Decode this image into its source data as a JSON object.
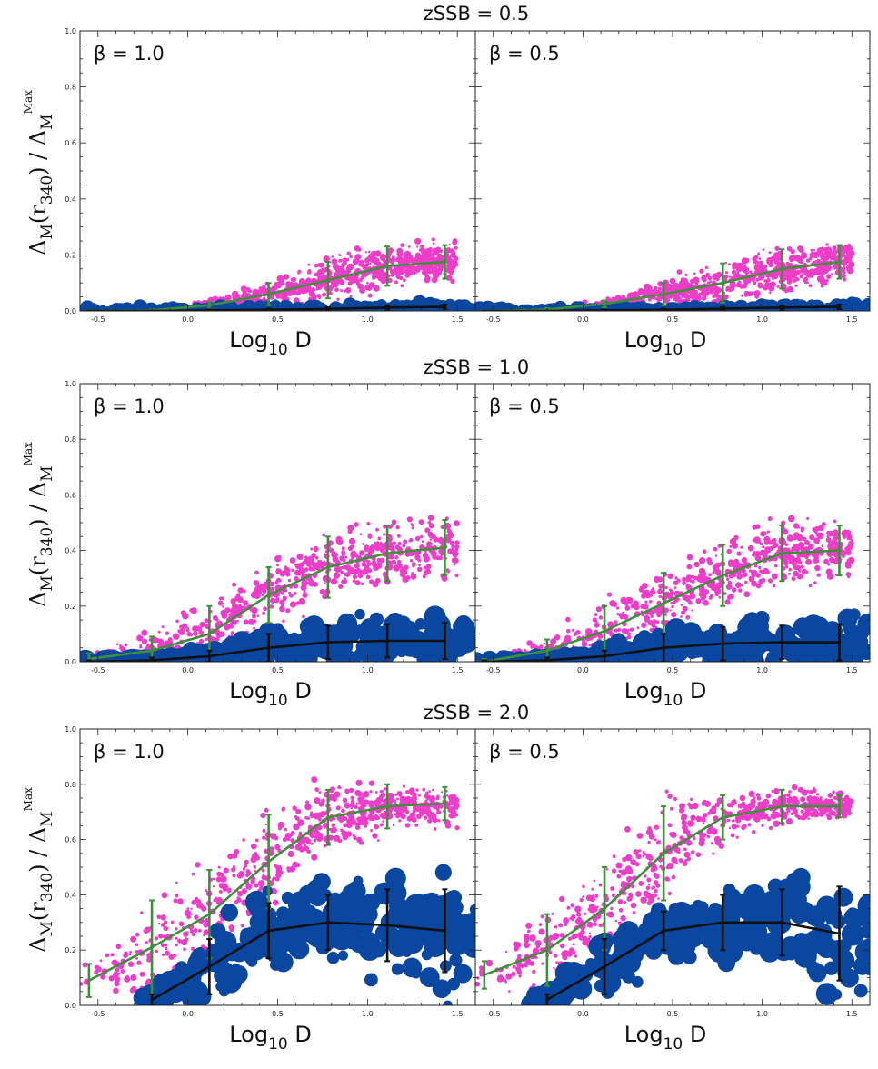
{
  "colors": {
    "magenta": "#ee3dc8",
    "blue": "#0a47a0",
    "green": "#3f8f3a",
    "black": "#111111",
    "frame": "#222222"
  },
  "icons": {
    "magenta_points": "magenta-scatter-marker",
    "blue_points": "blue-scatter-marker"
  },
  "chart_data": [
    {
      "type": "scatter",
      "row": 0,
      "panel": "left",
      "title": "zSSB = 0.5",
      "annotation": "β = 1.0",
      "xlabel": "Log10 D",
      "ylabel": "ΔM(r340) / ΔM Max",
      "xlim": [
        -0.6,
        1.6
      ],
      "ylim": [
        0,
        1.0
      ],
      "xticks": [
        "-0.5",
        "0.0",
        "0.5",
        "1.0",
        "1.5"
      ],
      "yticks": [
        "0.0",
        "0.2",
        "0.4",
        "0.6",
        "0.8",
        "1.0"
      ],
      "series": [
        {
          "name": "magenta scatter",
          "color": "magenta",
          "kind": "scatter",
          "x_range": [
            0.0,
            1.5
          ],
          "mean_curve": "green"
        },
        {
          "name": "blue scatter",
          "color": "blue",
          "kind": "scatter",
          "x_range": [
            -0.6,
            1.6
          ],
          "mean_curve": "black"
        },
        {
          "name": "green mean",
          "color": "green",
          "kind": "line_errorbar",
          "x": [
            -0.55,
            -0.2,
            0.12,
            0.45,
            0.78,
            1.11,
            1.43
          ],
          "y": [
            0.0,
            0.002,
            0.02,
            0.06,
            0.11,
            0.16,
            0.175
          ],
          "err": [
            0.003,
            0.004,
            0.012,
            0.04,
            0.065,
            0.07,
            0.06
          ]
        },
        {
          "name": "black mean",
          "color": "black",
          "kind": "line_errorbar",
          "x": [
            -0.55,
            -0.2,
            0.12,
            0.45,
            0.78,
            1.11,
            1.43
          ],
          "y": [
            0.0,
            0.0,
            0.002,
            0.004,
            0.007,
            0.012,
            0.015
          ],
          "err": [
            0.001,
            0.001,
            0.003,
            0.004,
            0.006,
            0.007,
            0.008
          ]
        }
      ]
    },
    {
      "type": "scatter",
      "row": 0,
      "panel": "right",
      "annotation": "β = 0.5",
      "xlabel": "Log10 D",
      "xlim": [
        -0.6,
        1.6
      ],
      "ylim": [
        0,
        1.0
      ],
      "xticks": [
        "-0.5",
        "0.0",
        "0.5",
        "1.0",
        "1.5"
      ],
      "series": [
        {
          "name": "magenta scatter",
          "color": "magenta",
          "kind": "scatter",
          "x_range": [
            0.0,
            1.5
          ],
          "mean_curve": "green"
        },
        {
          "name": "blue scatter",
          "color": "blue",
          "kind": "scatter",
          "x_range": [
            -0.6,
            1.6
          ],
          "mean_curve": "black"
        },
        {
          "name": "green mean",
          "color": "green",
          "kind": "line_errorbar",
          "x": [
            -0.55,
            -0.2,
            0.12,
            0.45,
            0.78,
            1.11,
            1.43
          ],
          "y": [
            0.0,
            0.005,
            0.025,
            0.06,
            0.1,
            0.15,
            0.175
          ],
          "err": [
            0.003,
            0.005,
            0.012,
            0.04,
            0.07,
            0.07,
            0.06
          ]
        },
        {
          "name": "black mean",
          "color": "black",
          "kind": "line_errorbar",
          "x": [
            -0.55,
            -0.2,
            0.12,
            0.45,
            0.78,
            1.11,
            1.43
          ],
          "y": [
            0.0,
            0.0,
            0.002,
            0.004,
            0.008,
            0.012,
            0.015
          ],
          "err": [
            0.001,
            0.001,
            0.003,
            0.004,
            0.006,
            0.007,
            0.008
          ]
        }
      ]
    },
    {
      "type": "scatter",
      "row": 1,
      "panel": "left",
      "title": "zSSB = 1.0",
      "annotation": "β = 1.0",
      "xlabel": "Log10 D",
      "ylabel": "ΔM(r340) / ΔM Max",
      "xlim": [
        -0.6,
        1.6
      ],
      "ylim": [
        0,
        1.0
      ],
      "xticks": [
        "-0.5",
        "0.0",
        "0.5",
        "1.0",
        "1.5"
      ],
      "yticks": [
        "0.0",
        "0.2",
        "0.4",
        "0.6",
        "0.8",
        "1.0"
      ],
      "series": [
        {
          "name": "magenta scatter",
          "color": "magenta",
          "kind": "scatter",
          "x_range": [
            -0.6,
            1.5
          ],
          "mean_curve": "green"
        },
        {
          "name": "blue scatter",
          "color": "blue",
          "kind": "scatter",
          "x_range": [
            -0.6,
            1.6
          ],
          "mean_curve": "black"
        },
        {
          "name": "green mean",
          "color": "green",
          "kind": "line_errorbar",
          "x": [
            -0.55,
            -0.2,
            0.12,
            0.45,
            0.78,
            1.11,
            1.43
          ],
          "y": [
            0.01,
            0.04,
            0.1,
            0.24,
            0.34,
            0.39,
            0.41
          ],
          "err": [
            0.02,
            0.05,
            0.1,
            0.1,
            0.11,
            0.1,
            0.1
          ]
        },
        {
          "name": "black mean",
          "color": "black",
          "kind": "line_errorbar",
          "x": [
            -0.55,
            -0.2,
            0.12,
            0.45,
            0.78,
            1.11,
            1.43
          ],
          "y": [
            0.0,
            0.005,
            0.02,
            0.05,
            0.07,
            0.075,
            0.075
          ],
          "err": [
            0.005,
            0.01,
            0.02,
            0.05,
            0.06,
            0.06,
            0.065
          ]
        }
      ]
    },
    {
      "type": "scatter",
      "row": 1,
      "panel": "right",
      "annotation": "β = 0.5",
      "xlabel": "Log10 D",
      "xlim": [
        -0.6,
        1.6
      ],
      "ylim": [
        0,
        1.0
      ],
      "xticks": [
        "-0.5",
        "0.0",
        "0.5",
        "1.0",
        "1.5"
      ],
      "series": [
        {
          "name": "magenta scatter",
          "color": "magenta",
          "kind": "scatter",
          "x_range": [
            -0.6,
            1.5
          ],
          "mean_curve": "green"
        },
        {
          "name": "blue scatter",
          "color": "blue",
          "kind": "scatter",
          "x_range": [
            -0.6,
            1.6
          ],
          "mean_curve": "black"
        },
        {
          "name": "green mean",
          "color": "green",
          "kind": "line_errorbar",
          "x": [
            -0.55,
            -0.2,
            0.12,
            0.45,
            0.78,
            1.11,
            1.43
          ],
          "y": [
            0.0,
            0.04,
            0.11,
            0.21,
            0.31,
            0.39,
            0.4
          ],
          "err": [
            0.01,
            0.04,
            0.09,
            0.11,
            0.11,
            0.1,
            0.09
          ]
        },
        {
          "name": "black mean",
          "color": "black",
          "kind": "line_errorbar",
          "x": [
            -0.55,
            -0.2,
            0.12,
            0.45,
            0.78,
            1.11,
            1.43
          ],
          "y": [
            0.0,
            0.005,
            0.02,
            0.05,
            0.065,
            0.07,
            0.07
          ],
          "err": [
            0.005,
            0.01,
            0.02,
            0.05,
            0.06,
            0.06,
            0.065
          ]
        }
      ]
    },
    {
      "type": "scatter",
      "row": 2,
      "panel": "left",
      "title": "zSSB = 2.0",
      "annotation": "β = 1.0",
      "xlabel": "Log10 D",
      "ylabel": "ΔM(r340) / ΔM Max",
      "xlim": [
        -0.6,
        1.6
      ],
      "ylim": [
        0,
        1.0
      ],
      "xticks": [
        "-0.5",
        "0.0",
        "0.5",
        "1.0",
        "1.5"
      ],
      "yticks": [
        "0.0",
        "0.2",
        "0.4",
        "0.6",
        "0.8",
        "1.0"
      ],
      "series": [
        {
          "name": "magenta scatter",
          "color": "magenta",
          "kind": "scatter",
          "x_range": [
            -0.6,
            1.5
          ],
          "mean_curve": "green"
        },
        {
          "name": "blue scatter",
          "color": "blue",
          "kind": "scatter",
          "x_range": [
            -0.3,
            1.6
          ],
          "mean_curve": "black"
        },
        {
          "name": "green mean",
          "color": "green",
          "kind": "line_errorbar",
          "x": [
            -0.55,
            -0.2,
            0.12,
            0.45,
            0.78,
            1.11,
            1.43
          ],
          "y": [
            0.09,
            0.21,
            0.33,
            0.52,
            0.68,
            0.72,
            0.73
          ],
          "err": [
            0.06,
            0.17,
            0.16,
            0.17,
            0.1,
            0.08,
            0.06
          ]
        },
        {
          "name": "black mean",
          "color": "black",
          "kind": "line_errorbar",
          "x": [
            -0.2,
            0.12,
            0.45,
            0.78,
            1.11,
            1.43
          ],
          "y": [
            0.02,
            0.14,
            0.27,
            0.3,
            0.29,
            0.27
          ],
          "err": [
            0.02,
            0.1,
            0.1,
            0.1,
            0.13,
            0.15
          ]
        }
      ]
    },
    {
      "type": "scatter",
      "row": 2,
      "panel": "right",
      "annotation": "β = 0.5",
      "xlabel": "Log10 D",
      "xlim": [
        -0.6,
        1.6
      ],
      "ylim": [
        0,
        1.0
      ],
      "xticks": [
        "-0.5",
        "0.0",
        "0.5",
        "1.0",
        "1.5"
      ],
      "series": [
        {
          "name": "magenta scatter",
          "color": "magenta",
          "kind": "scatter",
          "x_range": [
            -0.6,
            1.5
          ],
          "mean_curve": "green"
        },
        {
          "name": "blue scatter",
          "color": "blue",
          "kind": "scatter",
          "x_range": [
            -0.3,
            1.6
          ],
          "mean_curve": "black"
        },
        {
          "name": "green mean",
          "color": "green",
          "kind": "line_errorbar",
          "x": [
            -0.55,
            -0.2,
            0.12,
            0.45,
            0.78,
            1.11,
            1.43
          ],
          "y": [
            0.11,
            0.2,
            0.35,
            0.55,
            0.68,
            0.72,
            0.72
          ],
          "err": [
            0.05,
            0.13,
            0.15,
            0.17,
            0.08,
            0.06,
            0.04
          ]
        },
        {
          "name": "black mean",
          "color": "black",
          "kind": "line_errorbar",
          "x": [
            -0.2,
            0.12,
            0.45,
            0.78,
            1.11,
            1.43
          ],
          "y": [
            0.02,
            0.14,
            0.27,
            0.3,
            0.3,
            0.26
          ],
          "err": [
            0.02,
            0.1,
            0.07,
            0.1,
            0.12,
            0.17
          ]
        }
      ]
    }
  ]
}
